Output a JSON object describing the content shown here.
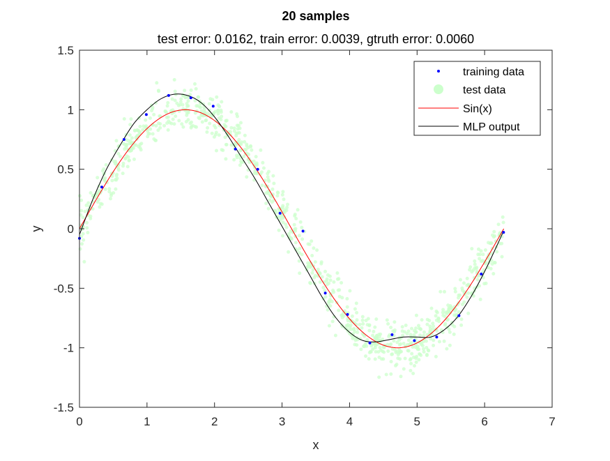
{
  "chart_data": {
    "type": "scatter",
    "title": "20 samples",
    "subtitle": "test error: 0.0162, train error: 0.0039, gtruth error: 0.0060",
    "xlabel": "x",
    "ylabel": "y",
    "xlim": [
      0,
      7
    ],
    "ylim": [
      -1.5,
      1.5
    ],
    "xticks": [
      0,
      1,
      2,
      3,
      4,
      5,
      6,
      7
    ],
    "xtick_labels": [
      "0",
      "1",
      "2",
      "3",
      "4",
      "5",
      "6",
      "7"
    ],
    "yticks": [
      -1.5,
      -1,
      -0.5,
      0,
      0.5,
      1,
      1.5
    ],
    "ytick_labels": [
      "-1.5",
      "-1",
      "-0.5",
      "0",
      "0.5",
      "1",
      "1.5"
    ],
    "grid": false,
    "legend_position": "top-right",
    "series": [
      {
        "name": "training data",
        "kind": "points",
        "color": "#0000ff",
        "x": [
          0.0,
          0.33,
          0.66,
          0.99,
          1.32,
          1.65,
          1.98,
          2.31,
          2.64,
          2.97,
          3.31,
          3.64,
          3.97,
          4.3,
          4.63,
          4.96,
          5.29,
          5.62,
          5.95,
          6.28
        ],
        "y": [
          -0.08,
          0.35,
          0.75,
          0.96,
          1.12,
          1.1,
          1.03,
          0.67,
          0.5,
          0.13,
          -0.02,
          -0.54,
          -0.72,
          -0.96,
          -0.89,
          -0.94,
          -0.91,
          -0.73,
          -0.38,
          -0.03
        ]
      },
      {
        "name": "test data",
        "kind": "cloud",
        "color": "#ccffcc",
        "count": 1000,
        "noise_std": 0.1
      },
      {
        "name": "Sin(x)",
        "kind": "line",
        "color": "#ff0000",
        "function": "sin",
        "x_range": [
          0,
          6.2832
        ]
      },
      {
        "name": "MLP output",
        "kind": "line",
        "color": "#000000",
        "x": [
          0.0,
          0.2,
          0.4,
          0.6,
          0.8,
          1.0,
          1.2,
          1.4,
          1.6,
          1.8,
          2.0,
          2.2,
          2.4,
          2.6,
          2.8,
          3.0,
          3.2,
          3.4,
          3.6,
          3.8,
          4.0,
          4.2,
          4.4,
          4.6,
          4.8,
          5.0,
          5.2,
          5.4,
          5.6,
          5.8,
          6.0,
          6.2,
          6.28
        ],
        "y": [
          -0.05,
          0.25,
          0.5,
          0.7,
          0.88,
          1.0,
          1.09,
          1.13,
          1.12,
          1.06,
          0.94,
          0.78,
          0.6,
          0.42,
          0.22,
          0.02,
          -0.18,
          -0.38,
          -0.58,
          -0.75,
          -0.87,
          -0.94,
          -0.95,
          -0.93,
          -0.91,
          -0.91,
          -0.91,
          -0.85,
          -0.74,
          -0.57,
          -0.36,
          -0.12,
          -0.02
        ]
      }
    ]
  }
}
